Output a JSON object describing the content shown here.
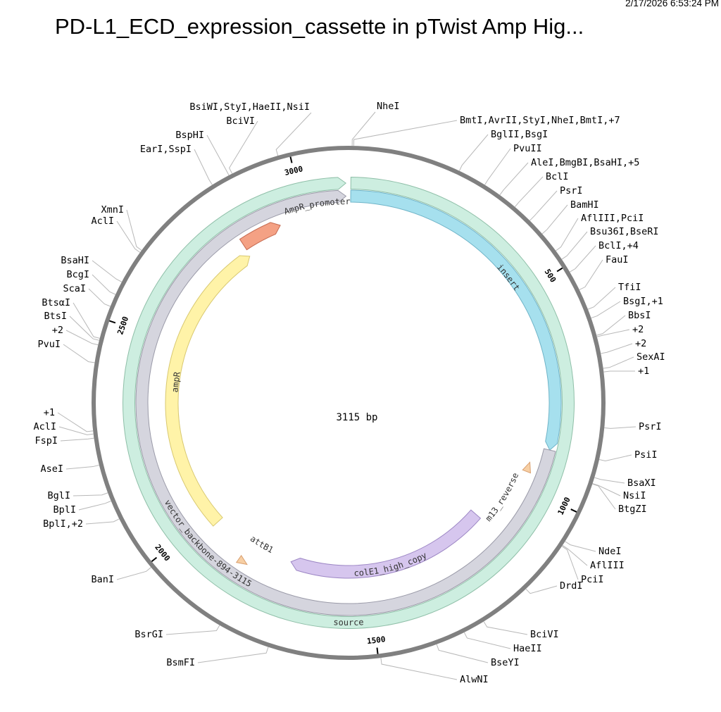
{
  "timestamp": "2/17/2026 6:53:24 PM",
  "title": "PD-L1_ECD_expression_cassette in pTwist Amp Hig...",
  "map": {
    "length_bp": 3115,
    "center_label": "3115 bp",
    "ticks": [
      {
        "bp": 500,
        "label": "500"
      },
      {
        "bp": 1000,
        "label": "1000"
      },
      {
        "bp": 1500,
        "label": "1500"
      },
      {
        "bp": 2000,
        "label": "2000"
      },
      {
        "bp": 2500,
        "label": "2500"
      },
      {
        "bp": 3000,
        "label": "3000"
      }
    ],
    "features": [
      {
        "name": "source",
        "start": 1,
        "end": 3115,
        "color": "#cdeee0",
        "stroke": "#8fbfa8",
        "track": "outer"
      },
      {
        "name": "insert",
        "start": 1,
        "end": 893,
        "color": "#a6e0ee",
        "stroke": "#6fb4c8",
        "track": "middle"
      },
      {
        "name": "vector_backbone-894-3115",
        "start": 894,
        "end": 3115,
        "color": "#d5d5de",
        "stroke": "#9a9aa8",
        "track": "middle"
      },
      {
        "name": "AmpR_promoter",
        "start": 2825,
        "end": 2933,
        "color": "#f4a184",
        "stroke": "#c56a50",
        "track": "inner"
      },
      {
        "name": "ampR",
        "start": 1971,
        "end": 2821,
        "color": "#fff3a8",
        "stroke": "#d8c870",
        "track": "inner"
      },
      {
        "name": "colE1_high_copy",
        "start": 1136,
        "end": 1730,
        "color": "#d6c6ee",
        "stroke": "#9c86c4",
        "track": "inner"
      }
    ],
    "primers": [
      {
        "name": "m13_reverse",
        "bp": 952,
        "color": "#f7cfa4"
      },
      {
        "name": "attB1",
        "bp": 1852,
        "color": "#f7cfa4"
      }
    ],
    "sites": [
      {
        "label": "BsiWI,StyI,HaeII,NsiI",
        "bp": 2977
      },
      {
        "label": "BciVI",
        "bp": 2882
      },
      {
        "label": "BspHI",
        "bp": 2875
      },
      {
        "label": "EarI,SspI",
        "bp": 2838
      },
      {
        "label": "XmnI",
        "bp": 2651
      },
      {
        "label": "AclI",
        "bp": 2646
      },
      {
        "label": "BsaHI",
        "bp": 2579
      },
      {
        "label": "BcgI",
        "bp": 2552
      },
      {
        "label": "ScaI",
        "bp": 2527
      },
      {
        "label": "BtsαI",
        "bp": 2462
      },
      {
        "label": "BtsI",
        "bp": 2458
      },
      {
        "label": "+2",
        "bp": 2449
      },
      {
        "label": "PvuI",
        "bp": 2414
      },
      {
        "label": "+1",
        "bp": 2282
      },
      {
        "label": "AclI",
        "bp": 2276
      },
      {
        "label": "FspI",
        "bp": 2268
      },
      {
        "label": "AseI",
        "bp": 2215
      },
      {
        "label": "BglI",
        "bp": 2159
      },
      {
        "label": "BplI",
        "bp": 2142
      },
      {
        "label": "BplI,+2",
        "bp": 2104
      },
      {
        "label": "BanI",
        "bp": 1992
      },
      {
        "label": "BsrGI",
        "bp": 1818
      },
      {
        "label": "BsmFI",
        "bp": 1715
      },
      {
        "label": "AlwNI",
        "bp": 1495
      },
      {
        "label": "BseYI",
        "bp": 1384
      },
      {
        "label": "HaeII",
        "bp": 1326
      },
      {
        "label": "BciVI",
        "bp": 1283
      },
      {
        "label": "DrdI",
        "bp": 1180
      },
      {
        "label": "PciI",
        "bp": 1072
      },
      {
        "label": "AflIII",
        "bp": 1070
      },
      {
        "label": "NdeI",
        "bp": 1061
      },
      {
        "label": "BtgZI",
        "bp": 938
      },
      {
        "label": "NsiI",
        "bp": 937
      },
      {
        "label": "BsaXI",
        "bp": 925
      },
      {
        "label": "PsiI",
        "bp": 889
      },
      {
        "label": "PsrI",
        "bp": 827
      },
      {
        "label": "+1",
        "bp": 719
      },
      {
        "label": "SexAI",
        "bp": 712
      },
      {
        "label": "+2",
        "bp": 683
      },
      {
        "label": "+2",
        "bp": 650
      },
      {
        "label": "BbsI",
        "bp": 647
      },
      {
        "label": "BsgI,+1",
        "bp": 612
      },
      {
        "label": "TfiI",
        "bp": 594
      },
      {
        "label": "FauI",
        "bp": 553
      },
      {
        "label": "BclI,+4",
        "bp": 514
      },
      {
        "label": "Bsu36I,BseRI",
        "bp": 485
      },
      {
        "label": "AflIII,PciI",
        "bp": 465
      },
      {
        "label": "BamHI",
        "bp": 423
      },
      {
        "label": "PsrI",
        "bp": 388
      },
      {
        "label": "BclI",
        "bp": 349
      },
      {
        "label": "AleI,BmgBI,BsaHI,+5",
        "bp": 312
      },
      {
        "label": "PvuII",
        "bp": 277
      },
      {
        "label": "BglII,BsgI",
        "bp": 221
      },
      {
        "label": "BmtI,AvrII,StyI,NheI,BmtI,+7",
        "bp": 10
      },
      {
        "label": "NheI",
        "bp": 7
      }
    ]
  }
}
